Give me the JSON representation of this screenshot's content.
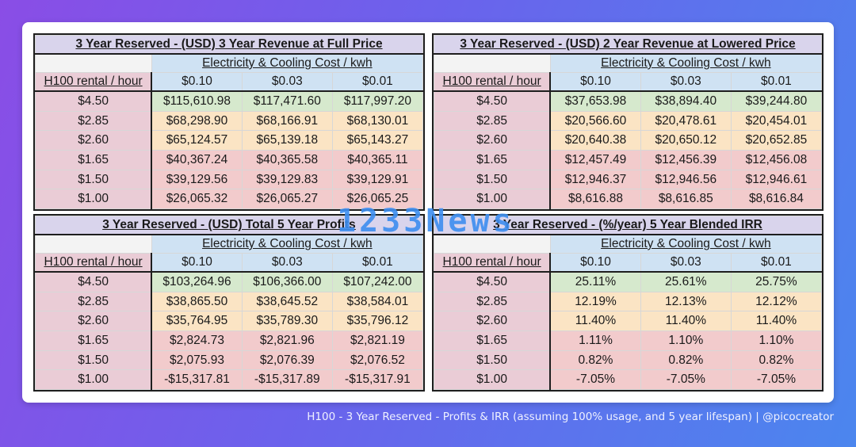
{
  "watermark": "1233News",
  "caption": "H100 - 3 Year Reserved - Profits & IRR (assuming 100% usage, and 5 year lifespan) | @picocreator",
  "colors": {
    "green": "#d6e9cd",
    "yellow": "#fbe4c4",
    "red": "#f2cbcc",
    "header_blue": "#cfe2f3",
    "row_pink": "#eaccd6",
    "title_lavender": "#d9d4ec"
  },
  "chart_data": [
    {
      "type": "table",
      "title": "3 Year Reserved - (USD) 3 Year Revenue at Full Price",
      "group_label": "Electricity & Cooling Cost / kwh",
      "row_header": "H100 rental / hour",
      "columns": [
        "$0.10",
        "$0.03",
        "$0.01"
      ],
      "rows": [
        {
          "label": "$4.50",
          "cells": [
            "$115,610.98",
            "$117,471.60",
            "$117,997.20"
          ]
        },
        {
          "label": "$2.85",
          "cells": [
            "$68,298.90",
            "$68,166.91",
            "$68,130.01"
          ]
        },
        {
          "label": "$2.60",
          "cells": [
            "$65,124.57",
            "$65,139.18",
            "$65,143.27"
          ]
        },
        {
          "label": "$1.65",
          "cells": [
            "$40,367.24",
            "$40,365.58",
            "$40,365.11"
          ]
        },
        {
          "label": "$1.50",
          "cells": [
            "$39,129.56",
            "$39,129.83",
            "$39,129.91"
          ]
        },
        {
          "label": "$1.00",
          "cells": [
            "$26,065.32",
            "$26,065.27",
            "$26,065.25"
          ]
        }
      ]
    },
    {
      "type": "table",
      "title": "3 Year Reserved - (USD) 2 Year Revenue at Lowered Price",
      "group_label": "Electricity & Cooling Cost / kwh",
      "row_header": "H100 rental / hour",
      "columns": [
        "$0.10",
        "$0.03",
        "$0.01"
      ],
      "rows": [
        {
          "label": "$4.50",
          "cells": [
            "$37,653.98",
            "$38,894.40",
            "$39,244.80"
          ]
        },
        {
          "label": "$2.85",
          "cells": [
            "$20,566.60",
            "$20,478.61",
            "$20,454.01"
          ]
        },
        {
          "label": "$2.60",
          "cells": [
            "$20,640.38",
            "$20,650.12",
            "$20,652.85"
          ]
        },
        {
          "label": "$1.65",
          "cells": [
            "$12,457.49",
            "$12,456.39",
            "$12,456.08"
          ]
        },
        {
          "label": "$1.50",
          "cells": [
            "$12,946.37",
            "$12,946.56",
            "$12,946.61"
          ]
        },
        {
          "label": "$1.00",
          "cells": [
            "$8,616.88",
            "$8,616.85",
            "$8,616.84"
          ]
        }
      ]
    },
    {
      "type": "table",
      "title": "3 Year Reserved - (USD) Total 5 Year Profits",
      "group_label": "Electricity & Cooling Cost / kwh",
      "row_header": "H100 rental / hour",
      "columns": [
        "$0.10",
        "$0.03",
        "$0.01"
      ],
      "rows": [
        {
          "label": "$4.50",
          "cells": [
            "$103,264.96",
            "$106,366.00",
            "$107,242.00"
          ]
        },
        {
          "label": "$2.85",
          "cells": [
            "$38,865.50",
            "$38,645.52",
            "$38,584.01"
          ]
        },
        {
          "label": "$2.60",
          "cells": [
            "$35,764.95",
            "$35,789.30",
            "$35,796.12"
          ]
        },
        {
          "label": "$1.65",
          "cells": [
            "$2,824.73",
            "$2,821.96",
            "$2,821.19"
          ]
        },
        {
          "label": "$1.50",
          "cells": [
            "$2,075.93",
            "$2,076.39",
            "$2,076.52"
          ]
        },
        {
          "label": "$1.00",
          "cells": [
            "-$15,317.81",
            "-$15,317.89",
            "-$15,317.91"
          ]
        }
      ]
    },
    {
      "type": "table",
      "title": "3 Year Reserved - (%/year) 5 Year Blended IRR",
      "group_label": "Electricity & Cooling Cost / kwh",
      "row_header": "H100 rental / hour",
      "columns": [
        "$0.10",
        "$0.03",
        "$0.01"
      ],
      "rows": [
        {
          "label": "$4.50",
          "cells": [
            "25.11%",
            "25.61%",
            "25.75%"
          ]
        },
        {
          "label": "$2.85",
          "cells": [
            "12.19%",
            "12.13%",
            "12.12%"
          ]
        },
        {
          "label": "$2.60",
          "cells": [
            "11.40%",
            "11.40%",
            "11.40%"
          ]
        },
        {
          "label": "$1.65",
          "cells": [
            "1.11%",
            "1.10%",
            "1.10%"
          ]
        },
        {
          "label": "$1.50",
          "cells": [
            "0.82%",
            "0.82%",
            "0.82%"
          ]
        },
        {
          "label": "$1.00",
          "cells": [
            "-7.05%",
            "-7.05%",
            "-7.05%"
          ]
        }
      ]
    }
  ]
}
